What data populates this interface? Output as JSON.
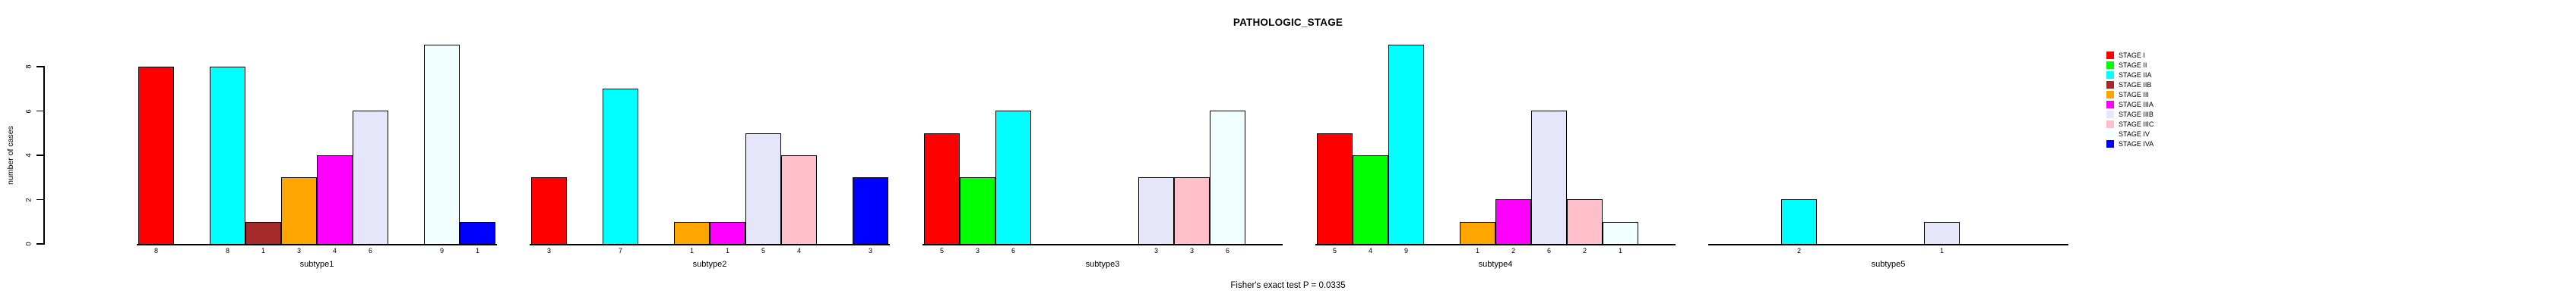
{
  "title": "PATHOLOGIC_STAGE",
  "subtitle": "Fisher's exact test P = 0.0335",
  "chart_data": {
    "type": "bar",
    "title": "PATHOLOGIC_STAGE",
    "subtitle": "Fisher's exact test P = 0.0335",
    "xlabel": "",
    "ylabel": "number of cases",
    "yticks": [
      0,
      2,
      4,
      6,
      8
    ],
    "ylim": [
      0,
      9
    ],
    "grid": false,
    "bar_value_labels_shown": true,
    "legend_position": "right",
    "categories": [
      "subtype1",
      "subtype2",
      "subtype3",
      "subtype4",
      "subtype5"
    ],
    "series": [
      {
        "name": "STAGE I",
        "color": "#FF0000",
        "values": [
          8,
          3,
          5,
          5,
          0
        ]
      },
      {
        "name": "STAGE II",
        "color": "#00FF00",
        "values": [
          0,
          0,
          3,
          4,
          0
        ]
      },
      {
        "name": "STAGE IIA",
        "color": "#00FFFF",
        "values": [
          8,
          7,
          6,
          9,
          2
        ]
      },
      {
        "name": "STAGE IIB",
        "color": "#A52A2A",
        "values": [
          1,
          0,
          0,
          0,
          0
        ]
      },
      {
        "name": "STAGE III",
        "color": "#FFA500",
        "values": [
          3,
          1,
          0,
          1,
          0
        ]
      },
      {
        "name": "STAGE IIIA",
        "color": "#FF00FF",
        "values": [
          4,
          1,
          0,
          2,
          0
        ]
      },
      {
        "name": "STAGE IIIB",
        "color": "#E6E6FA",
        "values": [
          6,
          5,
          3,
          6,
          1
        ]
      },
      {
        "name": "STAGE IIIC",
        "color": "#FFC0CB",
        "values": [
          0,
          4,
          3,
          2,
          0
        ]
      },
      {
        "name": "STAGE IV",
        "color": "#F0FFFF",
        "values": [
          9,
          0,
          6,
          1,
          0
        ]
      },
      {
        "name": "STAGE IVA",
        "color": "#0000FF",
        "values": [
          1,
          3,
          0,
          0,
          0
        ]
      }
    ],
    "axis_color": "#000000",
    "bar_border_color": "#000000",
    "background_color": "#FFFFFF"
  }
}
